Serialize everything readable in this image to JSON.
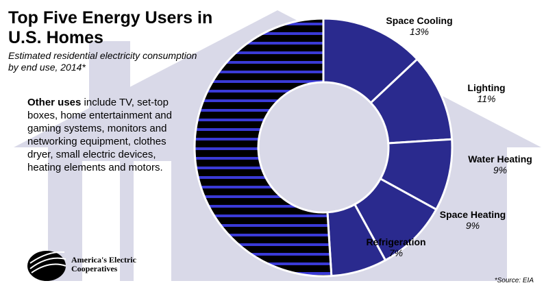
{
  "chart_data": {
    "type": "pie",
    "title": "Top Five Energy Users in U.S. Homes",
    "subtitle": "Estimated residential electricity consumption by end use, 2014*",
    "note": {
      "lead": "Other uses",
      "text": "include TV, set-top boxes, home entertainment and gaming systems, monitors and networking equipment, clothes dryer, small electric devices, heating elements and motors."
    },
    "categories": [
      "Space Cooling",
      "Lighting",
      "Water Heating",
      "Space Heating",
      "Refrigeration",
      null
    ],
    "values": [
      13,
      11,
      9,
      9,
      7,
      51
    ],
    "value_labels": [
      "13%",
      "11%",
      "9%",
      "9%",
      "7%",
      null
    ],
    "colors": [
      "#2a2a8e",
      "#2a2a8e",
      "#2a2a8e",
      "#2a2a8e",
      "#2a2a8e",
      "#000000"
    ],
    "stripe_color": "#3a3ad6",
    "logo": "America's Electric Cooperatives",
    "source": "*Source: EIA"
  }
}
